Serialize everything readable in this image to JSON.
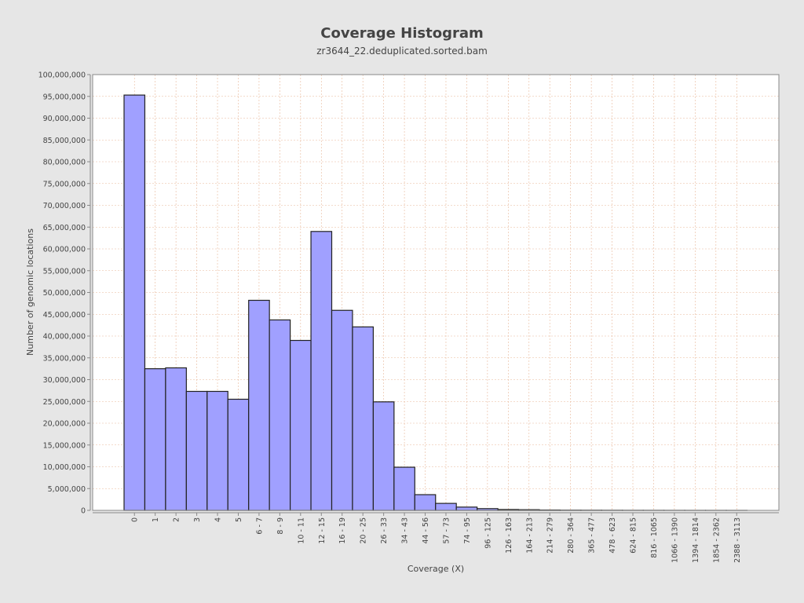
{
  "chart_data": {
    "type": "bar",
    "title": "Coverage Histogram",
    "subtitle": "zr3644_22.deduplicated.sorted.bam",
    "xlabel": "Coverage (X)",
    "ylabel": "Number of genomic locations",
    "ylim": [
      0,
      100000000
    ],
    "yticks": [
      0,
      5000000,
      10000000,
      15000000,
      20000000,
      25000000,
      30000000,
      35000000,
      40000000,
      45000000,
      50000000,
      55000000,
      60000000,
      65000000,
      70000000,
      75000000,
      80000000,
      85000000,
      90000000,
      95000000,
      100000000
    ],
    "ytick_labels": [
      "0",
      "5,000,000",
      "10,000,000",
      "15,000,000",
      "20,000,000",
      "25,000,000",
      "30,000,000",
      "35,000,000",
      "40,000,000",
      "45,000,000",
      "50,000,000",
      "55,000,000",
      "60,000,000",
      "65,000,000",
      "70,000,000",
      "75,000,000",
      "80,000,000",
      "85,000,000",
      "90,000,000",
      "95,000,000",
      "100,000,000"
    ],
    "categories": [
      "0",
      "1",
      "2",
      "3",
      "4",
      "5",
      "6 - 7",
      "8 - 9",
      "10 - 11",
      "12 - 15",
      "16 - 19",
      "20 - 25",
      "26 - 33",
      "34 - 43",
      "44 - 56",
      "57 - 73",
      "74 - 95",
      "96 - 125",
      "126 - 163",
      "164 - 213",
      "214 - 279",
      "280 - 364",
      "365 - 477",
      "478 - 623",
      "624 - 815",
      "816 - 1065",
      "1066 - 1390",
      "1394 - 1814",
      "1854 - 2362",
      "2388 - 3113"
    ],
    "values": [
      95300000,
      32500000,
      32700000,
      27300000,
      27300000,
      25500000,
      48200000,
      43700000,
      39000000,
      64000000,
      45900000,
      42100000,
      24900000,
      9900000,
      3600000,
      1600000,
      750000,
      400000,
      200000,
      150000,
      80000,
      50000,
      40000,
      30000,
      20000,
      15000,
      10000,
      8000,
      5000,
      3000
    ],
    "bar_color": "#a0a0ff",
    "bar_edge_color": "#222222",
    "background_color": "#e6e6e6",
    "plot_background": "#ffffff",
    "grid": true,
    "grid_color": "#e8b89a"
  }
}
